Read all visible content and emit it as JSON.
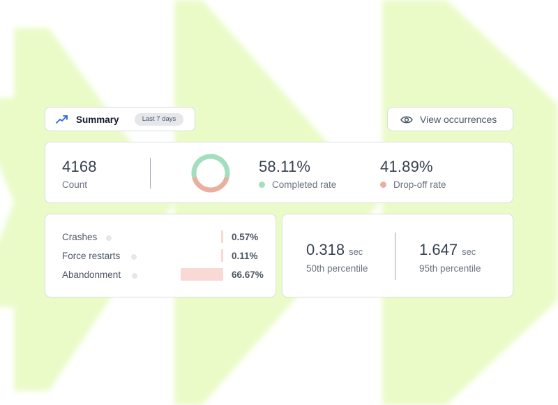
{
  "colors": {
    "background_shape": "#eafbc8",
    "completed": "#a3dfbf",
    "dropoff": "#eab09f",
    "bar": "#f8d9d4",
    "accent_icon": "#2563eb"
  },
  "summary": {
    "icon": "trend-up-icon",
    "title": "Summary",
    "badge": "Last 7 days"
  },
  "view_button": {
    "icon": "eye-icon",
    "label": "View occurrences"
  },
  "stats": {
    "count_value": "4168",
    "count_label": "Count",
    "completed_value": "58.11%",
    "completed_label": "Completed rate",
    "completed_fraction": 0.5811,
    "dropoff_value": "41.89%",
    "dropoff_label": "Drop-off rate"
  },
  "issues": [
    {
      "label": "Crashes",
      "percent": "0.57%",
      "fraction": 0.0057
    },
    {
      "label": "Force restarts",
      "percent": "0.11%",
      "fraction": 0.0011
    },
    {
      "label": "Abandonment",
      "percent": "66.67%",
      "fraction": 0.6667
    }
  ],
  "percentiles": [
    {
      "value": "0.318",
      "unit": "sec",
      "label": "50th percentile"
    },
    {
      "value": "1.647",
      "unit": "sec",
      "label": "95th percentile"
    }
  ]
}
